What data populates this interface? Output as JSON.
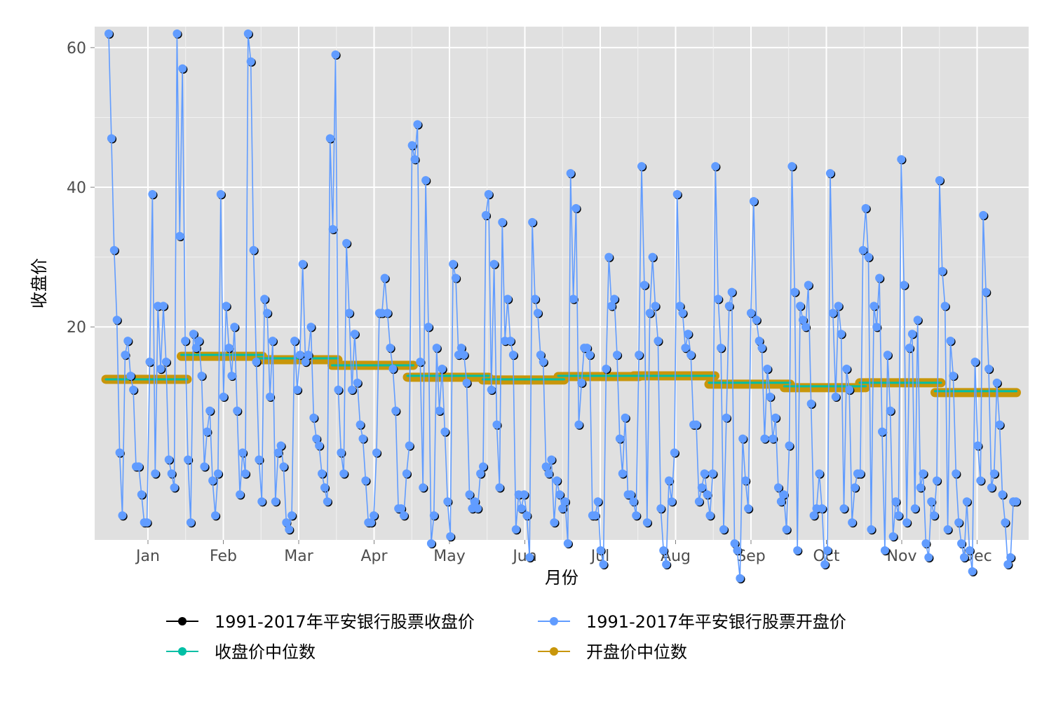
{
  "chart_data": {
    "type": "line",
    "title": "",
    "xlabel": "月份",
    "ylabel": "收盘价",
    "x_tick_labels": [
      "Jan",
      "Feb",
      "Mar",
      "Apr",
      "May",
      "Jun",
      "Jul",
      "Aug",
      "Sep",
      "Oct",
      "Nov",
      "Dec"
    ],
    "y_ticks": [
      20,
      40,
      60
    ],
    "ylim": [
      -10.5,
      63
    ],
    "grid": true,
    "panel_background": "#e0e0e0",
    "legend_position": "bottom",
    "series": [
      {
        "name": "1991-2017年平安银行股票收盘价",
        "color": "#000000",
        "values": [
          62,
          47,
          31,
          21,
          2,
          -7,
          16,
          18,
          13,
          11,
          0,
          0,
          -4,
          -8,
          -8,
          15,
          39,
          -1,
          23,
          14,
          23,
          15,
          1,
          -1,
          -3,
          62,
          33,
          57,
          18,
          1,
          -8,
          19,
          17,
          18,
          13,
          0,
          5,
          8,
          -2,
          -7,
          -1,
          39,
          10,
          23,
          17,
          13,
          20,
          8,
          -4,
          2,
          -1,
          62,
          58,
          31,
          15,
          1,
          -5,
          24,
          22,
          10,
          18,
          -5,
          2,
          3,
          0,
          -8,
          -9,
          -7,
          18,
          11,
          16,
          29,
          15,
          16,
          20,
          7,
          4,
          3,
          -1,
          -3,
          -5,
          47,
          34,
          59,
          11,
          2,
          -1,
          32,
          22,
          11,
          19,
          12,
          6,
          4,
          -2,
          -8,
          -8,
          -7,
          2,
          22,
          22,
          27,
          22,
          17,
          14,
          8,
          -6,
          -6,
          -7,
          -1,
          3,
          46,
          44,
          49,
          15,
          -3,
          41,
          20,
          -11,
          -7,
          17,
          8,
          14,
          5,
          -5,
          -10,
          29,
          27,
          16,
          17,
          16,
          12,
          -4,
          -6,
          -5,
          -6,
          -1,
          0,
          36,
          39,
          11,
          29,
          6,
          -3,
          35,
          18,
          24,
          18,
          16,
          -9,
          -4,
          -6,
          -4,
          -7,
          -13,
          35,
          24,
          22,
          16,
          15,
          0,
          -1,
          1,
          -8,
          -2,
          -4,
          -6,
          -5,
          -11,
          42,
          24,
          37,
          6,
          12,
          17,
          17,
          16,
          -7,
          -7,
          -5,
          -12,
          -14,
          14,
          30,
          23,
          24,
          16,
          4,
          -1,
          7,
          -4,
          -4,
          -5,
          -7,
          16,
          43,
          26,
          -8,
          22,
          30,
          23,
          18,
          -6,
          -12,
          -14,
          -2,
          -5,
          2,
          39,
          23,
          22,
          17,
          19,
          16,
          6,
          6,
          -5,
          -3,
          -1,
          -4,
          -7,
          -1,
          43,
          24,
          17,
          -9,
          7,
          23,
          25,
          -11,
          -12,
          -16,
          4,
          -2,
          -6,
          22,
          38,
          21,
          18,
          17,
          4,
          14,
          10,
          4,
          7,
          -3,
          -5,
          -4,
          -9,
          3,
          43,
          25,
          -12,
          23,
          21,
          20,
          26,
          9,
          -7,
          -6,
          -1,
          -6,
          -14,
          -12,
          42,
          22,
          10,
          23,
          19,
          -6,
          14,
          11,
          -8,
          -3,
          -1,
          -1,
          31,
          37,
          30,
          -9,
          23,
          20,
          27,
          5,
          -12,
          16,
          8,
          -10,
          -5,
          -7,
          44,
          26,
          -8,
          17,
          19,
          -6,
          21,
          -3,
          -1,
          -11,
          -13,
          -5,
          -7,
          -2,
          41,
          28,
          23,
          -9,
          18,
          13,
          -1,
          -8,
          -11,
          -13,
          -5,
          -12,
          -15,
          15,
          3,
          -2,
          36,
          25,
          14,
          -3,
          -1,
          12,
          6,
          -4,
          -8,
          -14,
          -13,
          -5,
          -5
        ],
        "show_points": true
      },
      {
        "name": "1991-2017年平安银行股票开盘价",
        "color": "#619cff",
        "values": [
          62,
          47,
          31,
          21,
          2,
          -7,
          16,
          18,
          13,
          11,
          0,
          0,
          -4,
          -8,
          -8,
          15,
          39,
          -1,
          23,
          14,
          23,
          15,
          1,
          -1,
          -3,
          62,
          33,
          57,
          18,
          1,
          -8,
          19,
          17,
          18,
          13,
          0,
          5,
          8,
          -2,
          -7,
          -1,
          39,
          10,
          23,
          17,
          13,
          20,
          8,
          -4,
          2,
          -1,
          62,
          58,
          31,
          15,
          1,
          -5,
          24,
          22,
          10,
          18,
          -5,
          2,
          3,
          0,
          -8,
          -9,
          -7,
          18,
          11,
          16,
          29,
          15,
          16,
          20,
          7,
          4,
          3,
          -1,
          -3,
          -5,
          47,
          34,
          59,
          11,
          2,
          -1,
          32,
          22,
          11,
          19,
          12,
          6,
          4,
          -2,
          -8,
          -8,
          -7,
          2,
          22,
          22,
          27,
          22,
          17,
          14,
          8,
          -6,
          -6,
          -7,
          -1,
          3,
          46,
          44,
          49,
          15,
          -3,
          41,
          20,
          -11,
          -7,
          17,
          8,
          14,
          5,
          -5,
          -10,
          29,
          27,
          16,
          17,
          16,
          12,
          -4,
          -6,
          -5,
          -6,
          -1,
          0,
          36,
          39,
          11,
          29,
          6,
          -3,
          35,
          18,
          24,
          18,
          16,
          -9,
          -4,
          -6,
          -4,
          -7,
          -13,
          35,
          24,
          22,
          16,
          15,
          0,
          -1,
          1,
          -8,
          -2,
          -4,
          -6,
          -5,
          -11,
          42,
          24,
          37,
          6,
          12,
          17,
          17,
          16,
          -7,
          -7,
          -5,
          -12,
          -14,
          14,
          30,
          23,
          24,
          16,
          4,
          -1,
          7,
          -4,
          -4,
          -5,
          -7,
          16,
          43,
          26,
          -8,
          22,
          30,
          23,
          18,
          -6,
          -12,
          -14,
          -2,
          -5,
          2,
          39,
          23,
          22,
          17,
          19,
          16,
          6,
          6,
          -5,
          -3,
          -1,
          -4,
          -7,
          -1,
          43,
          24,
          17,
          -9,
          7,
          23,
          25,
          -11,
          -12,
          -16,
          4,
          -2,
          -6,
          22,
          38,
          21,
          18,
          17,
          4,
          14,
          10,
          4,
          7,
          -3,
          -5,
          -4,
          -9,
          3,
          43,
          25,
          -12,
          23,
          21,
          20,
          26,
          9,
          -7,
          -6,
          -1,
          -6,
          -14,
          -12,
          42,
          22,
          10,
          23,
          19,
          -6,
          14,
          11,
          -8,
          -3,
          -1,
          -1,
          31,
          37,
          30,
          -9,
          23,
          20,
          27,
          5,
          -12,
          16,
          8,
          -10,
          -5,
          -7,
          44,
          26,
          -8,
          17,
          19,
          -6,
          21,
          -3,
          -1,
          -11,
          -13,
          -5,
          -7,
          -2,
          41,
          28,
          23,
          -9,
          18,
          13,
          -1,
          -8,
          -11,
          -13,
          -5,
          -12,
          -15,
          15,
          3,
          -2,
          36,
          25,
          14,
          -3,
          -1,
          12,
          6,
          -4,
          -8,
          -14,
          -13,
          -5,
          -5
        ],
        "show_points": true
      },
      {
        "name": "收盘价中位数",
        "color": "#00bfa5",
        "step_values": [
          12.5,
          16.0,
          15.5,
          14.5,
          13.0,
          12.5,
          13.0,
          13.0,
          12.0,
          11.5,
          12.0,
          10.8
        ]
      },
      {
        "name": "开盘价中位数",
        "color": "#c8960a",
        "step_values": [
          12.5,
          15.8,
          15.3,
          14.5,
          12.8,
          12.4,
          12.9,
          13.0,
          11.8,
          11.3,
          12.0,
          10.6
        ]
      }
    ]
  },
  "legend": {
    "items": [
      {
        "label": "1991-2017年平安银行股票收盘价",
        "color": "#000000"
      },
      {
        "label": "1991-2017年平安银行股票开盘价",
        "color": "#619cff"
      },
      {
        "label": "收盘价中位数",
        "color": "#00bfa5"
      },
      {
        "label": "开盘价中位数",
        "color": "#c8960a"
      }
    ]
  }
}
